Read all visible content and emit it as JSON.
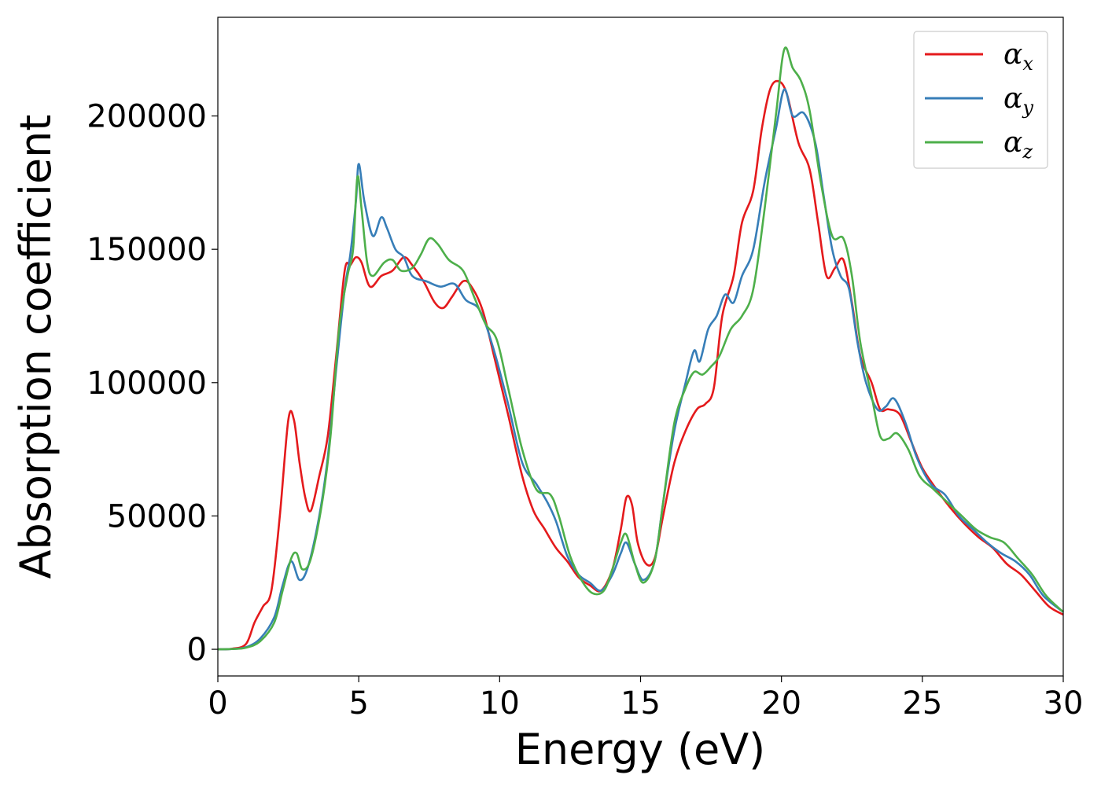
{
  "chart_data": {
    "type": "line",
    "title": "",
    "xlabel": "Energy (eV)",
    "ylabel": "Absorption coefficient",
    "xlim": [
      0,
      30
    ],
    "ylim": [
      -10000,
      237000
    ],
    "xticks": [
      0,
      5,
      10,
      15,
      20,
      25,
      30
    ],
    "xtick_labels": [
      "0",
      "5",
      "10",
      "15",
      "20",
      "25",
      "30"
    ],
    "yticks": [
      0,
      50000,
      100000,
      150000,
      200000
    ],
    "ytick_labels": [
      "0",
      "50000",
      "100000",
      "150000",
      "200000"
    ],
    "grid": false,
    "legend_position": "top-right",
    "series": [
      {
        "name": "α",
        "subscript": "x",
        "color": "#e41a1c",
        "points": [
          [
            0,
            0
          ],
          [
            0.5,
            200
          ],
          [
            1.0,
            2000
          ],
          [
            1.3,
            10000
          ],
          [
            1.6,
            16000
          ],
          [
            1.9,
            22000
          ],
          [
            2.2,
            50000
          ],
          [
            2.5,
            86000
          ],
          [
            2.7,
            86000
          ],
          [
            2.9,
            70000
          ],
          [
            3.1,
            57000
          ],
          [
            3.3,
            52000
          ],
          [
            3.6,
            65000
          ],
          [
            3.9,
            80000
          ],
          [
            4.2,
            110000
          ],
          [
            4.5,
            142000
          ],
          [
            4.7,
            144000
          ],
          [
            4.9,
            147000
          ],
          [
            5.1,
            145000
          ],
          [
            5.4,
            136000
          ],
          [
            5.8,
            140000
          ],
          [
            6.2,
            142000
          ],
          [
            6.6,
            147000
          ],
          [
            6.9,
            144000
          ],
          [
            7.3,
            138000
          ],
          [
            7.7,
            130000
          ],
          [
            8.0,
            128000
          ],
          [
            8.3,
            132000
          ],
          [
            8.7,
            138000
          ],
          [
            9.0,
            136000
          ],
          [
            9.4,
            127000
          ],
          [
            9.8,
            110000
          ],
          [
            10.3,
            88000
          ],
          [
            10.8,
            65000
          ],
          [
            11.2,
            52000
          ],
          [
            11.6,
            45000
          ],
          [
            12.0,
            38000
          ],
          [
            12.4,
            33000
          ],
          [
            12.8,
            27000
          ],
          [
            13.2,
            24000
          ],
          [
            13.6,
            22000
          ],
          [
            14.0,
            30000
          ],
          [
            14.3,
            45000
          ],
          [
            14.5,
            57000
          ],
          [
            14.7,
            54000
          ],
          [
            14.9,
            40000
          ],
          [
            15.2,
            32000
          ],
          [
            15.5,
            34000
          ],
          [
            15.8,
            50000
          ],
          [
            16.2,
            70000
          ],
          [
            16.6,
            82000
          ],
          [
            17.0,
            90000
          ],
          [
            17.3,
            92000
          ],
          [
            17.6,
            98000
          ],
          [
            17.9,
            125000
          ],
          [
            18.3,
            140000
          ],
          [
            18.6,
            160000
          ],
          [
            19.0,
            172000
          ],
          [
            19.3,
            195000
          ],
          [
            19.6,
            210000
          ],
          [
            19.9,
            213000
          ],
          [
            20.2,
            208000
          ],
          [
            20.6,
            190000
          ],
          [
            21.0,
            180000
          ],
          [
            21.3,
            160000
          ],
          [
            21.6,
            140000
          ],
          [
            21.9,
            143000
          ],
          [
            22.2,
            146000
          ],
          [
            22.5,
            130000
          ],
          [
            22.8,
            110000
          ],
          [
            23.2,
            100000
          ],
          [
            23.5,
            90000
          ],
          [
            23.8,
            90000
          ],
          [
            24.2,
            88000
          ],
          [
            24.6,
            78000
          ],
          [
            25.0,
            68000
          ],
          [
            25.5,
            60000
          ],
          [
            26.0,
            53000
          ],
          [
            26.5,
            47000
          ],
          [
            27.0,
            42000
          ],
          [
            27.5,
            38000
          ],
          [
            28.0,
            32000
          ],
          [
            28.5,
            28000
          ],
          [
            29.0,
            22000
          ],
          [
            29.5,
            16000
          ],
          [
            30.0,
            13000
          ]
        ]
      },
      {
        "name": "α",
        "subscript": "y",
        "color": "#377eb8",
        "points": [
          [
            0,
            0
          ],
          [
            0.5,
            100
          ],
          [
            1.0,
            800
          ],
          [
            1.5,
            4000
          ],
          [
            2.0,
            12000
          ],
          [
            2.3,
            24000
          ],
          [
            2.6,
            33000
          ],
          [
            2.9,
            26000
          ],
          [
            3.2,
            31000
          ],
          [
            3.6,
            50000
          ],
          [
            3.9,
            72000
          ],
          [
            4.2,
            105000
          ],
          [
            4.5,
            135000
          ],
          [
            4.7,
            148000
          ],
          [
            4.9,
            168000
          ],
          [
            5.0,
            182000
          ],
          [
            5.2,
            168000
          ],
          [
            5.5,
            155000
          ],
          [
            5.8,
            162000
          ],
          [
            6.0,
            158000
          ],
          [
            6.3,
            150000
          ],
          [
            6.6,
            147000
          ],
          [
            6.9,
            140000
          ],
          [
            7.4,
            138000
          ],
          [
            7.9,
            136000
          ],
          [
            8.4,
            137000
          ],
          [
            8.8,
            131000
          ],
          [
            9.3,
            127000
          ],
          [
            9.8,
            112000
          ],
          [
            10.3,
            92000
          ],
          [
            10.8,
            70000
          ],
          [
            11.3,
            62000
          ],
          [
            11.7,
            55000
          ],
          [
            12.0,
            48000
          ],
          [
            12.4,
            35000
          ],
          [
            12.8,
            28000
          ],
          [
            13.2,
            25000
          ],
          [
            13.6,
            22000
          ],
          [
            14.0,
            28000
          ],
          [
            14.3,
            36000
          ],
          [
            14.5,
            40000
          ],
          [
            14.8,
            32000
          ],
          [
            15.1,
            26000
          ],
          [
            15.5,
            33000
          ],
          [
            15.8,
            55000
          ],
          [
            16.2,
            82000
          ],
          [
            16.6,
            100000
          ],
          [
            16.9,
            112000
          ],
          [
            17.1,
            108000
          ],
          [
            17.4,
            120000
          ],
          [
            17.7,
            125000
          ],
          [
            18.0,
            133000
          ],
          [
            18.3,
            130000
          ],
          [
            18.6,
            140000
          ],
          [
            19.0,
            150000
          ],
          [
            19.4,
            175000
          ],
          [
            19.8,
            195000
          ],
          [
            20.1,
            210000
          ],
          [
            20.4,
            200000
          ],
          [
            20.8,
            201000
          ],
          [
            21.2,
            190000
          ],
          [
            21.5,
            170000
          ],
          [
            21.8,
            150000
          ],
          [
            22.1,
            140000
          ],
          [
            22.4,
            135000
          ],
          [
            22.7,
            115000
          ],
          [
            23.0,
            100000
          ],
          [
            23.4,
            90000
          ],
          [
            23.7,
            91000
          ],
          [
            24.0,
            94000
          ],
          [
            24.4,
            85000
          ],
          [
            24.8,
            72000
          ],
          [
            25.3,
            62000
          ],
          [
            25.8,
            58000
          ],
          [
            26.3,
            50000
          ],
          [
            26.8,
            45000
          ],
          [
            27.3,
            40000
          ],
          [
            27.8,
            36000
          ],
          [
            28.3,
            33000
          ],
          [
            28.8,
            28000
          ],
          [
            29.3,
            20000
          ],
          [
            30.0,
            14000
          ]
        ]
      },
      {
        "name": "α",
        "subscript": "z",
        "color": "#4daf4a",
        "points": [
          [
            0,
            0
          ],
          [
            0.5,
            100
          ],
          [
            1.0,
            600
          ],
          [
            1.5,
            3000
          ],
          [
            2.0,
            10000
          ],
          [
            2.3,
            22000
          ],
          [
            2.6,
            34000
          ],
          [
            2.8,
            36000
          ],
          [
            3.0,
            30000
          ],
          [
            3.3,
            34000
          ],
          [
            3.7,
            55000
          ],
          [
            4.0,
            80000
          ],
          [
            4.3,
            120000
          ],
          [
            4.6,
            140000
          ],
          [
            4.8,
            150000
          ],
          [
            4.95,
            177000
          ],
          [
            5.1,
            165000
          ],
          [
            5.3,
            145000
          ],
          [
            5.5,
            140000
          ],
          [
            5.9,
            145000
          ],
          [
            6.2,
            146000
          ],
          [
            6.5,
            142000
          ],
          [
            6.9,
            143000
          ],
          [
            7.2,
            148000
          ],
          [
            7.5,
            154000
          ],
          [
            7.8,
            152000
          ],
          [
            8.2,
            146000
          ],
          [
            8.7,
            142000
          ],
          [
            9.1,
            132000
          ],
          [
            9.5,
            122000
          ],
          [
            9.9,
            116000
          ],
          [
            10.3,
            98000
          ],
          [
            10.8,
            75000
          ],
          [
            11.3,
            60000
          ],
          [
            11.8,
            58000
          ],
          [
            12.1,
            50000
          ],
          [
            12.5,
            35000
          ],
          [
            12.9,
            26000
          ],
          [
            13.3,
            21000
          ],
          [
            13.7,
            22000
          ],
          [
            14.0,
            30000
          ],
          [
            14.3,
            40000
          ],
          [
            14.5,
            43000
          ],
          [
            14.8,
            32000
          ],
          [
            15.1,
            25000
          ],
          [
            15.5,
            33000
          ],
          [
            15.8,
            55000
          ],
          [
            16.2,
            85000
          ],
          [
            16.6,
            98000
          ],
          [
            16.9,
            104000
          ],
          [
            17.2,
            103000
          ],
          [
            17.5,
            106000
          ],
          [
            17.8,
            110000
          ],
          [
            18.2,
            120000
          ],
          [
            18.6,
            125000
          ],
          [
            19.0,
            135000
          ],
          [
            19.4,
            165000
          ],
          [
            19.8,
            200000
          ],
          [
            20.1,
            225000
          ],
          [
            20.4,
            218000
          ],
          [
            20.7,
            213000
          ],
          [
            21.0,
            202000
          ],
          [
            21.4,
            175000
          ],
          [
            21.8,
            155000
          ],
          [
            22.2,
            154000
          ],
          [
            22.5,
            140000
          ],
          [
            22.8,
            115000
          ],
          [
            23.2,
            95000
          ],
          [
            23.5,
            80000
          ],
          [
            23.8,
            79000
          ],
          [
            24.1,
            81000
          ],
          [
            24.5,
            75000
          ],
          [
            24.9,
            65000
          ],
          [
            25.4,
            60000
          ],
          [
            25.9,
            55000
          ],
          [
            26.4,
            50000
          ],
          [
            26.9,
            45000
          ],
          [
            27.4,
            42000
          ],
          [
            27.9,
            40000
          ],
          [
            28.4,
            34000
          ],
          [
            28.9,
            28000
          ],
          [
            29.4,
            20000
          ],
          [
            30.0,
            14000
          ]
        ]
      }
    ]
  }
}
